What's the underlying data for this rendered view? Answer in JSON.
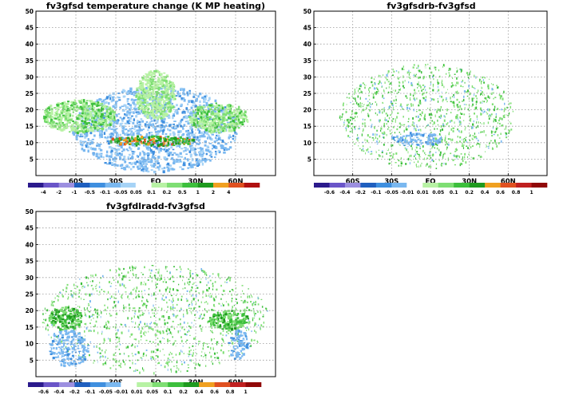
{
  "chart_data": [
    {
      "type": "heatmap",
      "title": "fv3gfsd temperature change (K MP heating)",
      "xlabel": "",
      "ylabel": "",
      "x_ticks": [
        "60S",
        "30S",
        "EQ",
        "30N",
        "60N"
      ],
      "y_ticks": [
        "5",
        "10",
        "15",
        "20",
        "25",
        "30",
        "35",
        "40",
        "45",
        "50"
      ],
      "ylim": [
        0,
        50
      ],
      "grid": true,
      "colorbar": {
        "levels": [
          "-4",
          "-2",
          "-1",
          "-0.5",
          "-0.1",
          "-0.05",
          "0.05",
          "0.1",
          "0.2",
          "0.5",
          "1",
          "2",
          "4"
        ],
        "colors": [
          "#2b1a8c",
          "#6a55c8",
          "#9c8fe0",
          "#1f5fbf",
          "#3f8fdf",
          "#7ab8f0",
          "#a6d3f6",
          "#ffffff",
          "#b7f2a4",
          "#7ede73",
          "#3cbf3c",
          "#1e9a1e",
          "#f0a020",
          "#e05020",
          "#b01010"
        ]
      },
      "features": [
        {
          "name": "negative-broad",
          "kind": "negative",
          "x": [
            -62,
            62
          ],
          "y": [
            1,
            27
          ],
          "level": "-0.1 to -0.5"
        },
        {
          "name": "positive-upper-band-south",
          "kind": "positive",
          "x": [
            -85,
            -30
          ],
          "y": [
            13,
            23
          ],
          "level": "0.1 to 0.5"
        },
        {
          "name": "positive-upper-band-north",
          "kind": "positive",
          "x": [
            25,
            70
          ],
          "y": [
            13,
            22
          ],
          "level": "0.1 to 0.5"
        },
        {
          "name": "positive-tropical-band",
          "kind": "positive",
          "x": [
            -35,
            30
          ],
          "y": [
            9,
            12
          ],
          "level": "0.5 to 2"
        },
        {
          "name": "positive-upper-tropics",
          "kind": "positive",
          "x": [
            -15,
            15
          ],
          "y": [
            17,
            32
          ],
          "level": "0.05 to 0.1"
        }
      ]
    },
    {
      "type": "heatmap",
      "title": "fv3gfsdrb-fv3gfsd",
      "xlabel": "",
      "ylabel": "",
      "x_ticks": [
        "60S",
        "30S",
        "EQ",
        "30N",
        "60N"
      ],
      "y_ticks": [
        "5",
        "10",
        "15",
        "20",
        "25",
        "30",
        "35",
        "40",
        "45",
        "50"
      ],
      "ylim": [
        0,
        50
      ],
      "grid": true,
      "colorbar": {
        "levels": [
          "-0.6",
          "-0.4",
          "-0.2",
          "-0.1",
          "-0.05",
          "-0.01",
          "0.01",
          "0.05",
          "0.1",
          "0.2",
          "0.4",
          "0.6",
          "0.8",
          "1"
        ],
        "colors": [
          "#2b1a8c",
          "#6a55c8",
          "#9c8fe0",
          "#1f5fbf",
          "#3f8fdf",
          "#7ab8f0",
          "#ffffff",
          "#b7f2a4",
          "#7ede73",
          "#3cbf3c",
          "#1e9a1e",
          "#f0a020",
          "#e05020",
          "#c02020",
          "#900808"
        ]
      },
      "features": [
        {
          "name": "mixed-speckle",
          "kind": "mixed",
          "x": [
            -70,
            65
          ],
          "y": [
            2,
            34
          ],
          "level": "-0.05 to 0.05"
        },
        {
          "name": "negative-tropical-band",
          "kind": "negative",
          "x": [
            -30,
            10
          ],
          "y": [
            9,
            13
          ],
          "level": "-0.05 to -0.1"
        }
      ]
    },
    {
      "type": "heatmap",
      "title": "fv3gfdlradd-fv3gfsd",
      "xlabel": "",
      "ylabel": "",
      "x_ticks": [
        "60S",
        "30S",
        "EQ",
        "30N",
        "60N"
      ],
      "y_ticks": [
        "5",
        "10",
        "15",
        "20",
        "25",
        "30",
        "35",
        "40",
        "45",
        "50"
      ],
      "ylim": [
        0,
        50
      ],
      "grid": true,
      "colorbar": {
        "levels": [
          "-0.6",
          "-0.4",
          "-0.2",
          "-0.1",
          "-0.05",
          "-0.01",
          "0.01",
          "0.05",
          "0.1",
          "0.2",
          "0.4",
          "0.6",
          "0.8",
          "1"
        ],
        "colors": [
          "#2b1a8c",
          "#6a55c8",
          "#9c8fe0",
          "#1f5fbf",
          "#3f8fdf",
          "#7ab8f0",
          "#ffffff",
          "#b7f2a4",
          "#7ede73",
          "#3cbf3c",
          "#1e9a1e",
          "#f0a020",
          "#e05020",
          "#c02020",
          "#900808"
        ]
      },
      "features": [
        {
          "name": "mixed-speckle",
          "kind": "mixed",
          "x": [
            -85,
            85
          ],
          "y": [
            1,
            34
          ],
          "level": "-0.05 to 0.05"
        },
        {
          "name": "positive-south-blob",
          "kind": "positive",
          "x": [
            -80,
            -55
          ],
          "y": [
            14,
            21
          ],
          "level": "0.1 to 0.4"
        },
        {
          "name": "positive-north-blob",
          "kind": "positive",
          "x": [
            40,
            70
          ],
          "y": [
            14,
            20
          ],
          "level": "0.1 to 0.4"
        },
        {
          "name": "negative-south-column",
          "kind": "negative",
          "x": [
            -80,
            -50
          ],
          "y": [
            3,
            14
          ],
          "level": "-0.05 to -0.2"
        },
        {
          "name": "negative-north-column",
          "kind": "negative",
          "x": [
            55,
            70
          ],
          "y": [
            5,
            14
          ],
          "level": "-0.05 to -0.1"
        }
      ]
    }
  ]
}
